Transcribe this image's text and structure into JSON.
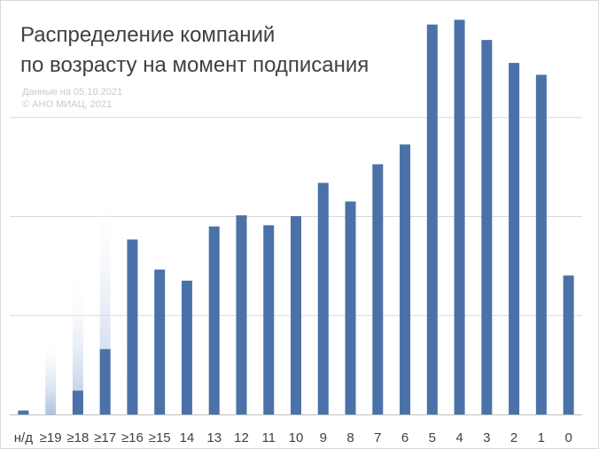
{
  "title_lines": [
    "Распределение компаний",
    "по возрасту на момент подписания"
  ],
  "notes": [
    "Данные на 05.10.2021",
    "© АНО МИАЦ, 2021"
  ],
  "colors": {
    "bar": "#4a72a8",
    "faded_bar": "#a9bfdd",
    "grid": "#d9d9d9",
    "axis": "#bfbfbf",
    "tick_label": "#404040",
    "title": "#404040",
    "note": "#c9c9c9"
  },
  "chart_data": {
    "type": "bar",
    "categories": [
      "н/д",
      "≥19",
      "≥18",
      "≥17",
      "≥16",
      "≥15",
      "14",
      "13",
      "12",
      "11",
      "10",
      "9",
      "8",
      "7",
      "6",
      "5",
      "4",
      "3",
      "2",
      "1",
      "0"
    ],
    "values": [
      1,
      0,
      6,
      16.5,
      44.2,
      36.6,
      33.8,
      47.5,
      50.3,
      47.8,
      50.1,
      58.5,
      53.8,
      63.2,
      68.2,
      98.5,
      99.7,
      94.6,
      88.8,
      85.8,
      35.1
    ],
    "faded_overlay_values": [
      0,
      20,
      36.5,
      57.5,
      22,
      1,
      0,
      0,
      0,
      0,
      0,
      0,
      0,
      0,
      0,
      0,
      0,
      0,
      0,
      0,
      0
    ],
    "ylim": [
      0,
      100
    ],
    "y_gridlines": [
      25,
      50,
      75
    ],
    "xlabel": "",
    "ylabel": "",
    "grid": true,
    "legend": "none"
  }
}
